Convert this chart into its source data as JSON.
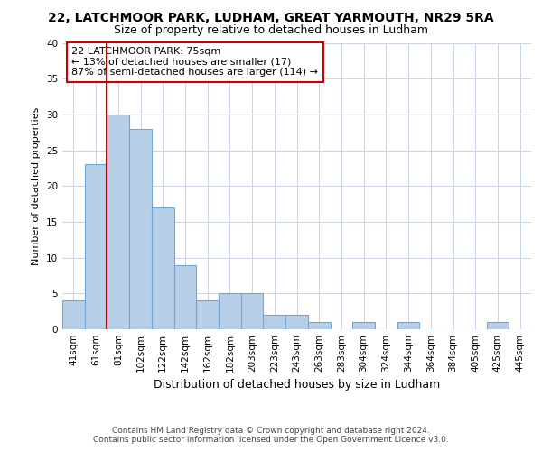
{
  "title1": "22, LATCHMOOR PARK, LUDHAM, GREAT YARMOUTH, NR29 5RA",
  "title2": "Size of property relative to detached houses in Ludham",
  "xlabel": "Distribution of detached houses by size in Ludham",
  "ylabel": "Number of detached properties",
  "categories": [
    "41sqm",
    "61sqm",
    "81sqm",
    "102sqm",
    "122sqm",
    "142sqm",
    "162sqm",
    "182sqm",
    "203sqm",
    "223sqm",
    "243sqm",
    "263sqm",
    "283sqm",
    "304sqm",
    "324sqm",
    "344sqm",
    "364sqm",
    "384sqm",
    "405sqm",
    "425sqm",
    "445sqm"
  ],
  "values": [
    4,
    23,
    30,
    28,
    17,
    9,
    4,
    5,
    5,
    2,
    2,
    1,
    0,
    1,
    0,
    1,
    0,
    0,
    0,
    1,
    0
  ],
  "bar_color": "#b8cfe8",
  "bar_edge_color": "#6ea8d8",
  "red_line_x": 1.5,
  "annotation_box_text": "22 LATCHMOOR PARK: 75sqm\n← 13% of detached houses are smaller (17)\n87% of semi-detached houses are larger (114) →",
  "box_color": "#ffffff",
  "box_edge_color": "#cc0000",
  "footer": "Contains HM Land Registry data © Crown copyright and database right 2024.\nContains public sector information licensed under the Open Government Licence v3.0.",
  "ylim": [
    0,
    40
  ],
  "yticks": [
    0,
    5,
    10,
    15,
    20,
    25,
    30,
    35,
    40
  ],
  "background_color": "#ffffff",
  "grid_color": "#c8d4e4",
  "title1_fontsize": 10,
  "title2_fontsize": 9,
  "xlabel_fontsize": 9,
  "ylabel_fontsize": 8,
  "tick_fontsize": 7.5,
  "annot_fontsize": 8,
  "footer_fontsize": 6.5
}
